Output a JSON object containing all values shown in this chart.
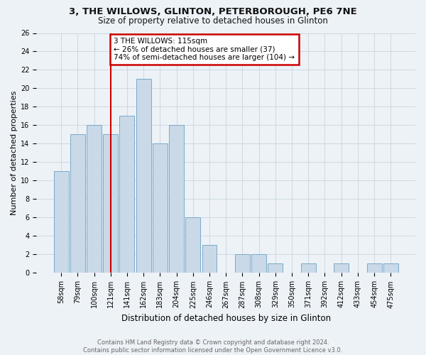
{
  "title1": "3, THE WILLOWS, GLINTON, PETERBOROUGH, PE6 7NE",
  "title2": "Size of property relative to detached houses in Glinton",
  "xlabel": "Distribution of detached houses by size in Glinton",
  "ylabel": "Number of detached properties",
  "bar_labels": [
    "58sqm",
    "79sqm",
    "100sqm",
    "121sqm",
    "141sqm",
    "162sqm",
    "183sqm",
    "204sqm",
    "225sqm",
    "246sqm",
    "267sqm",
    "287sqm",
    "308sqm",
    "329sqm",
    "350sqm",
    "371sqm",
    "392sqm",
    "412sqm",
    "433sqm",
    "454sqm",
    "475sqm"
  ],
  "bar_values": [
    11,
    15,
    16,
    15,
    17,
    21,
    14,
    16,
    6,
    3,
    0,
    2,
    2,
    1,
    0,
    1,
    0,
    1,
    0,
    1,
    1
  ],
  "bar_color": "#c9d9e8",
  "bar_edgecolor": "#7aaac8",
  "grid_color": "#c8d4e0",
  "vline_x_index": 3,
  "vline_color": "#cc0000",
  "annotation_text": "3 THE WILLOWS: 115sqm\n← 26% of detached houses are smaller (37)\n74% of semi-detached houses are larger (104) →",
  "annotation_box_edgecolor": "#cc0000",
  "annotation_box_facecolor": "#ffffff",
  "ylim": [
    0,
    26
  ],
  "yticks": [
    0,
    2,
    4,
    6,
    8,
    10,
    12,
    14,
    16,
    18,
    20,
    22,
    24,
    26
  ],
  "footer_text": "Contains HM Land Registry data © Crown copyright and database right 2024.\nContains public sector information licensed under the Open Government Licence v3.0.",
  "bg_color": "#edf2f7",
  "title1_fontsize": 9.5,
  "title2_fontsize": 8.5,
  "ylabel_fontsize": 8,
  "xlabel_fontsize": 8.5,
  "tick_fontsize": 7,
  "footer_fontsize": 6.0,
  "annotation_fontsize": 7.5
}
